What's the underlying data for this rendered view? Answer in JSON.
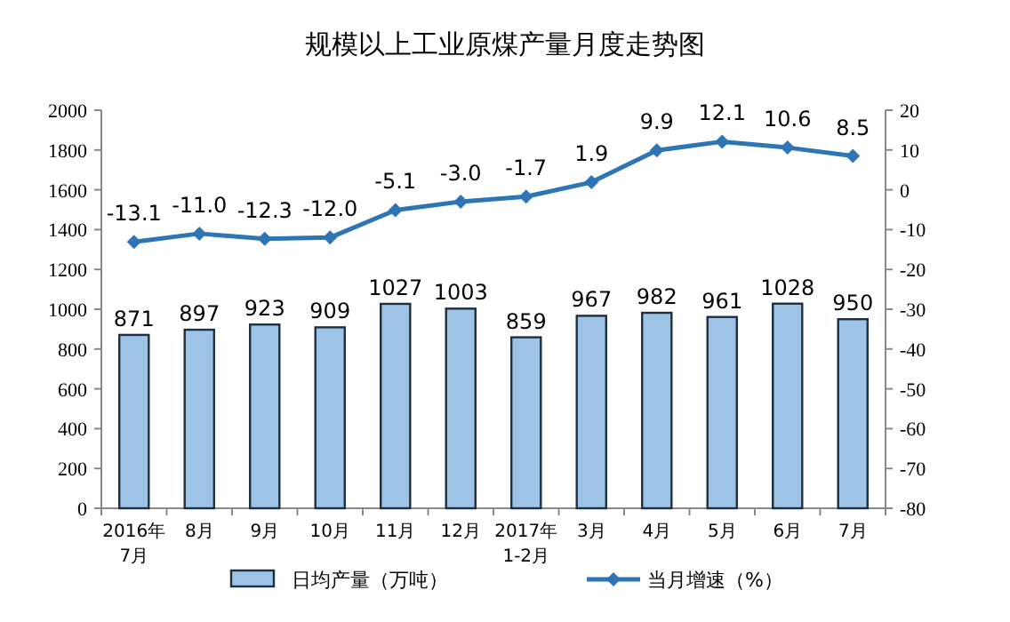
{
  "chart_data": {
    "type": "bar",
    "title": "规模以上工业原煤产量月度走势图",
    "categories": [
      "2016年\n7月",
      "8月",
      "9月",
      "10月",
      "11月",
      "12月",
      "2017年\n1-2月",
      "3月",
      "4月",
      "5月",
      "6月",
      "7月"
    ],
    "series": [
      {
        "name": "日均产量（万吨）",
        "color": "#9dc3e6",
        "values": [
          871,
          897,
          923,
          909,
          1027,
          1003,
          859,
          967,
          982,
          961,
          1028,
          950
        ]
      },
      {
        "name": "当月增速（%）",
        "type": "line",
        "axis": "y2",
        "color": "#2e75b6",
        "values": [
          -13.1,
          -11.0,
          -12.3,
          -12.0,
          -5.1,
          -3.0,
          -1.7,
          1.9,
          9.9,
          12.1,
          10.6,
          8.5
        ],
        "value_labels": [
          "-13.1",
          "-11.0",
          "-12.3",
          "-12.0",
          "-5.1",
          "-3.0",
          "-1.7",
          "1.9",
          "9.9",
          "12.1",
          "10.6",
          "8.5"
        ]
      }
    ],
    "ylim": [
      0,
      2000
    ],
    "yticks": [
      0,
      200,
      400,
      600,
      800,
      1000,
      1200,
      1400,
      1600,
      1800,
      2000
    ],
    "y2lim": [
      -80,
      20
    ],
    "y2ticks": [
      -80,
      -70,
      -60,
      -50,
      -40,
      -30,
      -20,
      -10,
      0,
      10,
      20
    ],
    "data_labels": true,
    "legend": "bottom",
    "marker": "diamond"
  }
}
